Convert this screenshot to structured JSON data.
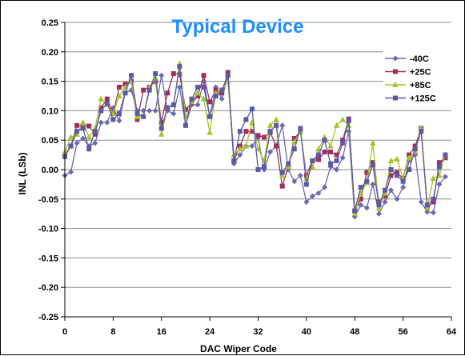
{
  "chart_data": {
    "type": "line",
    "title": "Typical Device",
    "title_color": "#1E90FF",
    "xlabel": "DAC Wiper Code",
    "ylabel": "INL (LSb)",
    "xlim": [
      0,
      64
    ],
    "ylim": [
      -0.25,
      0.25
    ],
    "x_ticks": [
      "0",
      "8",
      "16",
      "24",
      "32",
      "40",
      "48",
      "56",
      "64"
    ],
    "y_ticks": [
      "0.25",
      "0.20",
      "0.15",
      "0.10",
      "0.05",
      "0.00",
      "-0.05",
      "-0.10",
      "-0.15",
      "-0.20",
      "-0.25"
    ],
    "grid": "horizontal",
    "legend_position": "right",
    "series": [
      {
        "name": "-40C",
        "color": "#6A6AB0",
        "marker": "diamond",
        "values": [
          -0.01,
          -0.004,
          0.045,
          0.053,
          0.04,
          0.045,
          0.08,
          0.08,
          0.105,
          0.083,
          0.13,
          0.135,
          0.1,
          0.1,
          0.1,
          0.1,
          0.16,
          0.1,
          0.095,
          0.14,
          0.075,
          0.11,
          0.11,
          0.15,
          0.09,
          0.14,
          0.12,
          0.16,
          0.01,
          0.025,
          0.04,
          0.04,
          0.054,
          0.0,
          0.03,
          0.04,
          0.075,
          0.0,
          -0.02,
          -0.01,
          -0.055,
          -0.045,
          -0.04,
          -0.03,
          0.005,
          0.0,
          0.02,
          0.065,
          -0.08,
          -0.06,
          -0.065,
          -0.025,
          -0.075,
          -0.055,
          -0.035,
          -0.05,
          -0.03,
          0.015,
          0.025,
          -0.055,
          -0.072,
          -0.073,
          -0.025,
          -0.012
        ]
      },
      {
        "name": "+25C",
        "color": "#A0305A",
        "marker": "square",
        "values": [
          0.025,
          0.04,
          0.075,
          0.075,
          0.074,
          0.06,
          0.105,
          0.12,
          0.095,
          0.14,
          0.145,
          0.15,
          0.085,
          0.135,
          0.14,
          0.15,
          0.08,
          0.13,
          0.163,
          0.162,
          0.102,
          0.113,
          0.125,
          0.16,
          0.115,
          0.135,
          0.13,
          0.165,
          0.015,
          0.04,
          0.065,
          0.065,
          0.058,
          0.055,
          0.063,
          0.04,
          -0.028,
          0.005,
          0.053,
          0.065,
          -0.01,
          0.015,
          0.017,
          0.03,
          0.03,
          0.025,
          0.05,
          0.086,
          -0.07,
          -0.05,
          -0.005,
          0.012,
          -0.055,
          -0.045,
          -0.01,
          -0.005,
          -0.015,
          0.025,
          0.04,
          0.07,
          -0.065,
          -0.055,
          0.012,
          0.02
        ]
      },
      {
        "name": "+85C",
        "color": "#A6C426",
        "marker": "triangle",
        "values": [
          0.03,
          0.055,
          0.06,
          0.08,
          0.055,
          0.07,
          0.12,
          0.11,
          0.095,
          0.125,
          0.14,
          0.15,
          0.09,
          0.09,
          0.14,
          0.155,
          0.06,
          0.105,
          0.11,
          0.18,
          0.09,
          0.115,
          0.13,
          0.12,
          0.063,
          0.13,
          0.135,
          0.15,
          0.025,
          0.035,
          0.04,
          0.08,
          0.035,
          0.015,
          0.075,
          0.085,
          -0.01,
          0.005,
          0.047,
          0.065,
          -0.015,
          0.005,
          0.035,
          0.055,
          0.04,
          0.075,
          0.085,
          0.075,
          -0.075,
          -0.04,
          -0.022,
          0.045,
          -0.065,
          -0.04,
          0.015,
          0.018,
          -0.015,
          0.02,
          0.03,
          0.07,
          -0.065,
          -0.015,
          -0.01,
          0.025
        ]
      },
      {
        "name": "+125C",
        "color": "#5A5AA8",
        "marker": "square",
        "values": [
          0.022,
          0.04,
          0.065,
          0.07,
          0.035,
          0.065,
          0.1,
          0.113,
          0.085,
          0.095,
          0.13,
          0.16,
          0.095,
          0.09,
          0.135,
          0.163,
          0.07,
          0.105,
          0.11,
          0.175,
          0.075,
          0.12,
          0.14,
          0.14,
          0.09,
          0.125,
          0.135,
          0.16,
          0.015,
          0.065,
          0.085,
          0.103,
          0.0,
          0.005,
          0.065,
          0.075,
          -0.005,
          0.01,
          0.035,
          0.07,
          -0.025,
          0.015,
          0.025,
          0.05,
          0.01,
          0.015,
          0.045,
          0.083,
          -0.07,
          -0.03,
          -0.02,
          0.008,
          -0.06,
          -0.035,
          0.0,
          -0.01,
          -0.02,
          0.0,
          0.035,
          0.065,
          -0.06,
          -0.05,
          0.005,
          0.025
        ]
      }
    ]
  }
}
